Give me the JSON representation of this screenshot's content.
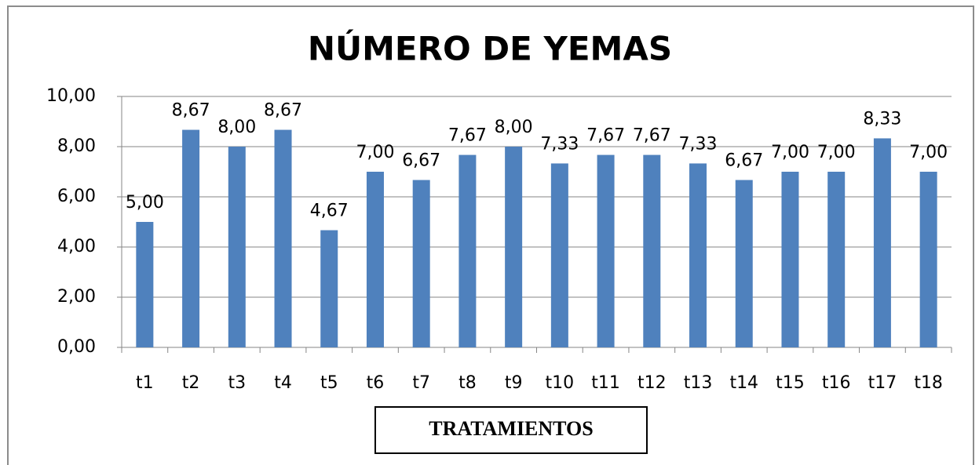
{
  "chart_data": {
    "type": "bar",
    "title": "NÚMERO DE YEMAS",
    "x_label": "TRATAMIENTOS",
    "categories": [
      "t1",
      "t2",
      "t3",
      "t4",
      "t5",
      "t6",
      "t7",
      "t8",
      "t9",
      "t10",
      "t11",
      "t12",
      "t13",
      "t14",
      "t15",
      "t16",
      "t17",
      "t18"
    ],
    "values": [
      5,
      8.67,
      8,
      8.67,
      4.67,
      7,
      6.67,
      7.67,
      8,
      7.33,
      7.67,
      7.67,
      7.33,
      6.67,
      7,
      7,
      8.33,
      7
    ],
    "value_labels": [
      "5,00",
      "8,67",
      "8,00",
      "8,67",
      "4,67",
      "7,00",
      "6,67",
      "7,67",
      "8,00",
      "7,33",
      "7,67",
      "7,67",
      "7,33",
      "6,67",
      "7,00",
      "7,00",
      "8,33",
      "7,00"
    ],
    "color": "#4f81bd",
    "ylim": [
      0,
      10
    ],
    "yticks": [
      {
        "value": 0,
        "label": "0,00"
      },
      {
        "value": 2,
        "label": "2,00"
      },
      {
        "value": 4,
        "label": "4,00"
      },
      {
        "value": 6,
        "label": "6,00"
      },
      {
        "value": 8,
        "label": "8,00"
      },
      {
        "value": 10,
        "label": "10,00"
      }
    ],
    "grid": true
  }
}
